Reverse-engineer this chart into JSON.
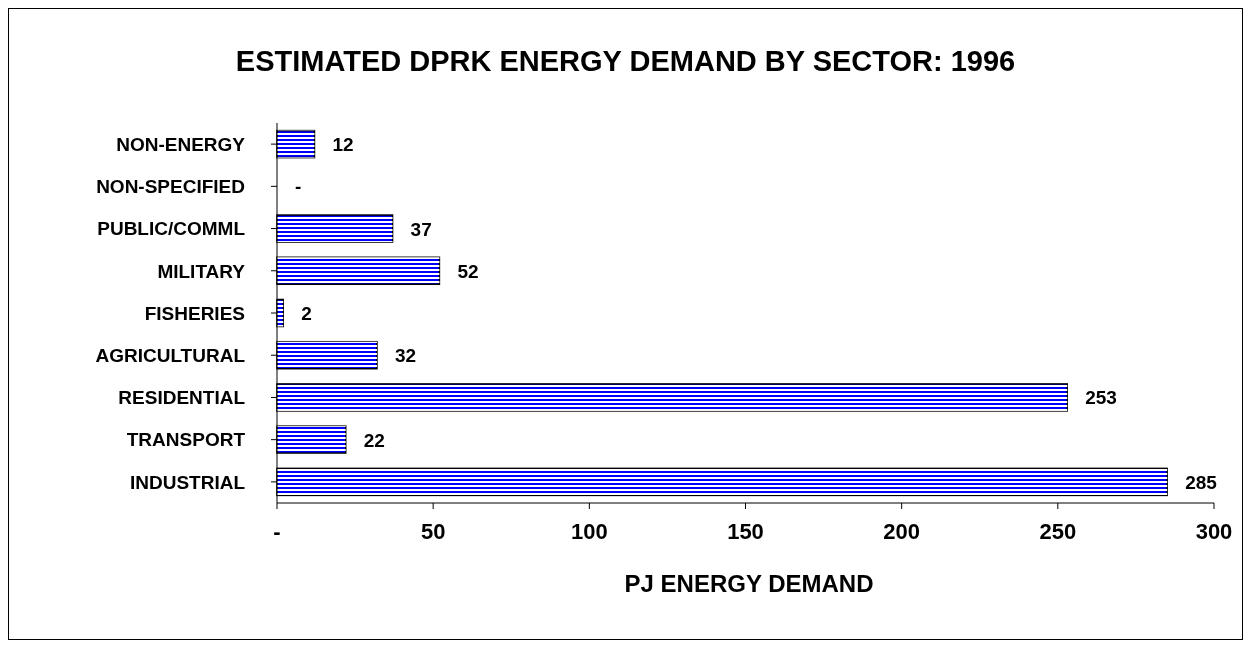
{
  "chart_data": {
    "type": "bar",
    "orientation": "horizontal",
    "title": "ESTIMATED DPRK ENERGY DEMAND BY SECTOR: 1996",
    "xlabel": "PJ ENERGY DEMAND",
    "categories": [
      "NON-ENERGY",
      "NON-SPECIFIED",
      "PUBLIC/COMML",
      "MILITARY",
      "FISHERIES",
      "AGRICULTURAL",
      "RESIDENTIAL",
      "TRANSPORT",
      "INDUSTRIAL"
    ],
    "values": [
      12,
      0,
      37,
      52,
      2,
      32,
      253,
      22,
      285
    ],
    "value_labels": [
      "12",
      "-",
      "37",
      "52",
      "2",
      "32",
      "253",
      "22",
      "285"
    ],
    "color": "#0000ff",
    "xlim": [
      0,
      300
    ],
    "xticks": [
      {
        "value": 0,
        "label": "-"
      },
      50,
      100,
      150,
      200,
      250,
      300
    ]
  }
}
